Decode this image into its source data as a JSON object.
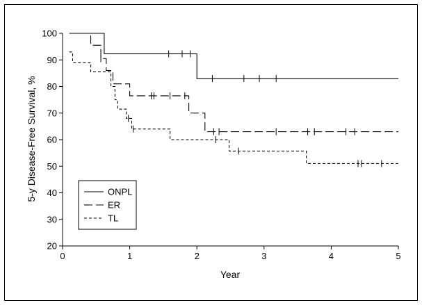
{
  "chart_data": {
    "type": "line",
    "subtype": "kaplan-meier step curves",
    "xlabel": "Year",
    "ylabel": "5-y Disease-Free Survival, %",
    "xlim": [
      0,
      5
    ],
    "ylim": [
      20,
      100
    ],
    "x_ticks": [
      "0",
      "1",
      "2",
      "3",
      "4",
      "5"
    ],
    "y_ticks": [
      "20",
      "30",
      "40",
      "50",
      "60",
      "70",
      "80",
      "90",
      "100"
    ],
    "grid": false,
    "legend_position": "bottom-left",
    "series": [
      {
        "name": "ONPL",
        "dash": "solid",
        "steps": [
          [
            0.1,
            100
          ],
          [
            0.62,
            92.3
          ],
          [
            2.0,
            83
          ],
          [
            5.0,
            83
          ]
        ],
        "censor_x": [
          1.58,
          1.78,
          1.9,
          2.23,
          2.7,
          2.93,
          3.18
        ]
      },
      {
        "name": "ER",
        "dash": "long-dash",
        "steps": [
          [
            0.1,
            100
          ],
          [
            0.42,
            95.5
          ],
          [
            0.57,
            90.5
          ],
          [
            0.65,
            86
          ],
          [
            0.75,
            81
          ],
          [
            1.0,
            76.5
          ],
          [
            1.88,
            70
          ],
          [
            2.12,
            63
          ],
          [
            5.0,
            63
          ]
        ],
        "censor_x": [
          0.57,
          1.32,
          1.36,
          1.6,
          1.82,
          2.25,
          2.33,
          3.18,
          3.65,
          3.75,
          4.22,
          4.35
        ]
      },
      {
        "name": "TL",
        "dash": "short-dash",
        "steps": [
          [
            0.1,
            93
          ],
          [
            0.15,
            89
          ],
          [
            0.42,
            85.5
          ],
          [
            0.72,
            80
          ],
          [
            0.78,
            75
          ],
          [
            0.82,
            71.5
          ],
          [
            0.95,
            68
          ],
          [
            1.03,
            64
          ],
          [
            1.6,
            60
          ],
          [
            2.48,
            55.7
          ],
          [
            3.63,
            51
          ],
          [
            5.0,
            51
          ]
        ],
        "censor_x": [
          0.98,
          1.05,
          2.28,
          2.62,
          4.4,
          4.45,
          4.75
        ]
      }
    ]
  }
}
